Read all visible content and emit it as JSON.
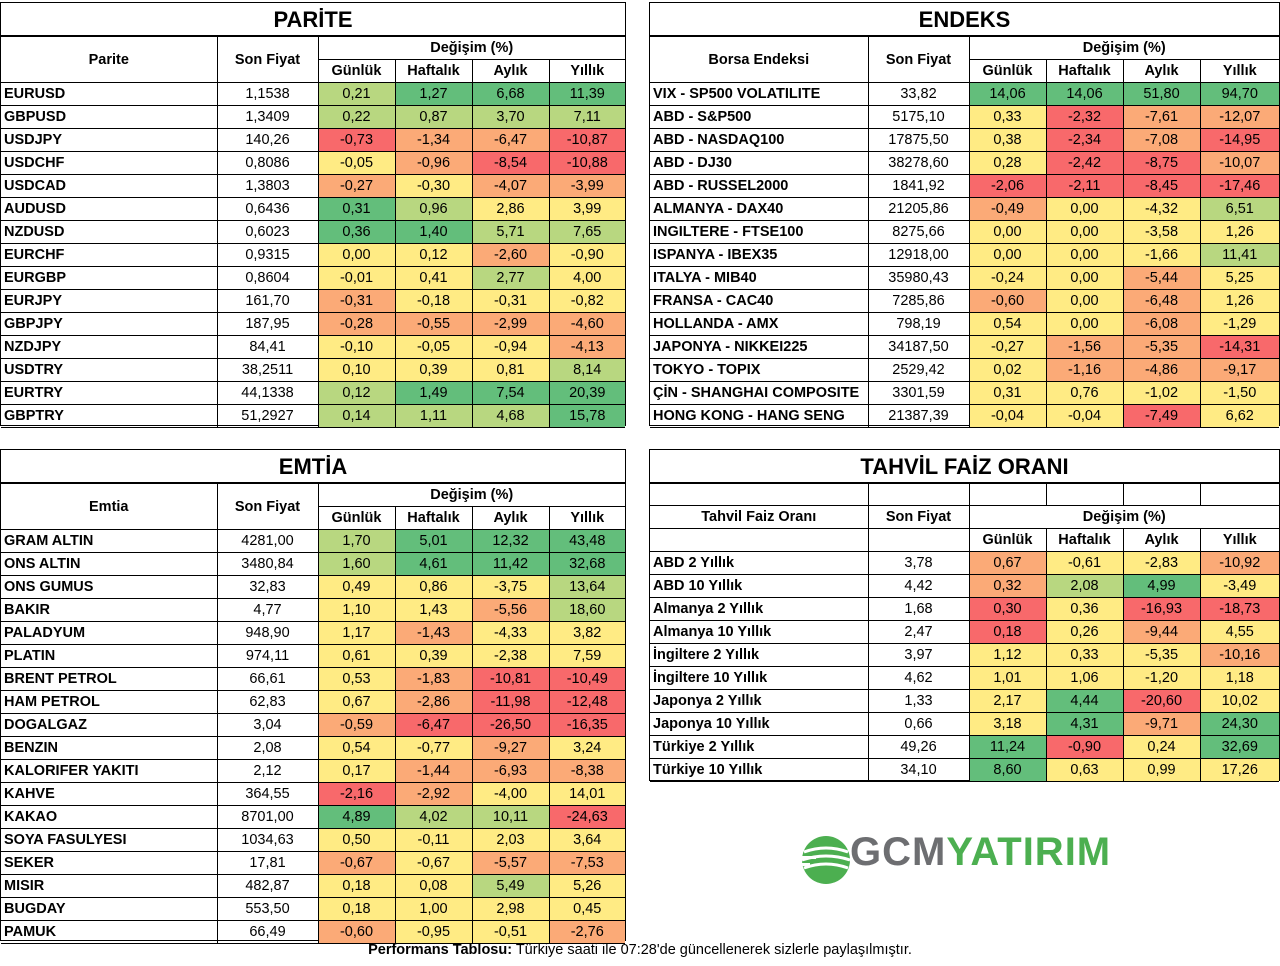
{
  "colors": {
    "red": "#f8696b",
    "orange": "#fbaa77",
    "yellow": "#ffeb84",
    "lightgreen": "#b8d780",
    "green": "#63be7b",
    "logo_green": "#4caf50",
    "logo_gray": "#6d6e71"
  },
  "parite": {
    "title": "PARİTE",
    "col_name": "Parite",
    "col_price": "Son Fiyat",
    "col_change": "Değişim (%)",
    "col_d": "Günlük",
    "col_w": "Haftalık",
    "col_m": "Aylık",
    "col_y": "Yıllık",
    "rows": [
      {
        "name": "EURUSD",
        "price": "1,1538",
        "d": "0,21",
        "w": "1,27",
        "m": "6,68",
        "y": "11,39",
        "cd": "lightgreen",
        "cw": "green",
        "cm": "green",
        "cy": "green"
      },
      {
        "name": "GBPUSD",
        "price": "1,3409",
        "d": "0,22",
        "w": "0,87",
        "m": "3,70",
        "y": "7,11",
        "cd": "lightgreen",
        "cw": "lightgreen",
        "cm": "lightgreen",
        "cy": "lightgreen"
      },
      {
        "name": "USDJPY",
        "price": "140,26",
        "d": "-0,73",
        "w": "-1,34",
        "m": "-6,47",
        "y": "-10,87",
        "cd": "red",
        "cw": "orange",
        "cm": "orange",
        "cy": "red"
      },
      {
        "name": "USDCHF",
        "price": "0,8086",
        "d": "-0,05",
        "w": "-0,96",
        "m": "-8,54",
        "y": "-10,88",
        "cd": "yellow",
        "cw": "orange",
        "cm": "red",
        "cy": "red"
      },
      {
        "name": "USDCAD",
        "price": "1,3803",
        "d": "-0,27",
        "w": "-0,30",
        "m": "-4,07",
        "y": "-3,99",
        "cd": "orange",
        "cw": "yellow",
        "cm": "orange",
        "cy": "orange"
      },
      {
        "name": "AUDUSD",
        "price": "0,6436",
        "d": "0,31",
        "w": "0,96",
        "m": "2,86",
        "y": "3,99",
        "cd": "green",
        "cw": "lightgreen",
        "cm": "yellow",
        "cy": "yellow"
      },
      {
        "name": "NZDUSD",
        "price": "0,6023",
        "d": "0,36",
        "w": "1,40",
        "m": "5,71",
        "y": "7,65",
        "cd": "green",
        "cw": "green",
        "cm": "lightgreen",
        "cy": "lightgreen"
      },
      {
        "name": "EURCHF",
        "price": "0,9315",
        "d": "0,00",
        "w": "0,12",
        "m": "-2,60",
        "y": "-0,90",
        "cd": "yellow",
        "cw": "yellow",
        "cm": "orange",
        "cy": "yellow"
      },
      {
        "name": "EURGBP",
        "price": "0,8604",
        "d": "-0,01",
        "w": "0,41",
        "m": "2,77",
        "y": "4,00",
        "cd": "yellow",
        "cw": "yellow",
        "cm": "lightgreen",
        "cy": "yellow"
      },
      {
        "name": "EURJPY",
        "price": "161,70",
        "d": "-0,31",
        "w": "-0,18",
        "m": "-0,31",
        "y": "-0,82",
        "cd": "orange",
        "cw": "yellow",
        "cm": "yellow",
        "cy": "yellow"
      },
      {
        "name": "GBPJPY",
        "price": "187,95",
        "d": "-0,28",
        "w": "-0,55",
        "m": "-2,99",
        "y": "-4,60",
        "cd": "orange",
        "cw": "orange",
        "cm": "orange",
        "cy": "orange"
      },
      {
        "name": "NZDJPY",
        "price": "84,41",
        "d": "-0,10",
        "w": "-0,05",
        "m": "-0,94",
        "y": "-4,13",
        "cd": "yellow",
        "cw": "yellow",
        "cm": "yellow",
        "cy": "orange"
      },
      {
        "name": "USDTRY",
        "price": "38,2511",
        "d": "0,10",
        "w": "0,39",
        "m": "0,81",
        "y": "8,14",
        "cd": "yellow",
        "cw": "yellow",
        "cm": "yellow",
        "cy": "lightgreen"
      },
      {
        "name": "EURTRY",
        "price": "44,1338",
        "d": "0,12",
        "w": "1,49",
        "m": "7,54",
        "y": "20,39",
        "cd": "lightgreen",
        "cw": "green",
        "cm": "green",
        "cy": "green"
      },
      {
        "name": "GBPTRY",
        "price": "51,2927",
        "d": "0,14",
        "w": "1,11",
        "m": "4,68",
        "y": "15,78",
        "cd": "lightgreen",
        "cw": "lightgreen",
        "cm": "lightgreen",
        "cy": "green"
      }
    ]
  },
  "endeks": {
    "title": "ENDEKS",
    "col_name": "Borsa Endeksi",
    "col_price": "Son Fiyat",
    "col_change": "Değişim (%)",
    "col_d": "Günlük",
    "col_w": "Haftalık",
    "col_m": "Aylık",
    "col_y": "Yıllık",
    "rows": [
      {
        "name": "VIX  - SP500 VOLATILITE",
        "price": "33,82",
        "d": "14,06",
        "w": "14,06",
        "m": "51,80",
        "y": "94,70",
        "cd": "green",
        "cw": "green",
        "cm": "green",
        "cy": "green"
      },
      {
        "name": "ABD - S&P500",
        "price": "5175,10",
        "d": "0,33",
        "w": "-2,32",
        "m": "-7,61",
        "y": "-12,07",
        "cd": "yellow",
        "cw": "red",
        "cm": "orange",
        "cy": "orange"
      },
      {
        "name": "ABD - NASDAQ100",
        "price": "17875,50",
        "d": "0,38",
        "w": "-2,34",
        "m": "-7,08",
        "y": "-14,95",
        "cd": "yellow",
        "cw": "red",
        "cm": "orange",
        "cy": "red"
      },
      {
        "name": "ABD - DJ30",
        "price": "38278,60",
        "d": "0,28",
        "w": "-2,42",
        "m": "-8,75",
        "y": "-10,07",
        "cd": "yellow",
        "cw": "red",
        "cm": "red",
        "cy": "orange"
      },
      {
        "name": "ABD - RUSSEL2000",
        "price": "1841,92",
        "d": "-2,06",
        "w": "-2,11",
        "m": "-8,45",
        "y": "-17,46",
        "cd": "red",
        "cw": "red",
        "cm": "red",
        "cy": "red"
      },
      {
        "name": "ALMANYA - DAX40",
        "price": "21205,86",
        "d": "-0,49",
        "w": "0,00",
        "m": "-4,32",
        "y": "6,51",
        "cd": "orange",
        "cw": "yellow",
        "cm": "yellow",
        "cy": "lightgreen"
      },
      {
        "name": "INGILTERE - FTSE100",
        "price": "8275,66",
        "d": "0,00",
        "w": "0,00",
        "m": "-3,58",
        "y": "1,26",
        "cd": "yellow",
        "cw": "yellow",
        "cm": "yellow",
        "cy": "yellow"
      },
      {
        "name": "ISPANYA - IBEX35",
        "price": "12918,00",
        "d": "0,00",
        "w": "0,00",
        "m": "-1,66",
        "y": "11,41",
        "cd": "yellow",
        "cw": "yellow",
        "cm": "yellow",
        "cy": "lightgreen"
      },
      {
        "name": "ITALYA - MIB40",
        "price": "35980,43",
        "d": "-0,24",
        "w": "0,00",
        "m": "-5,44",
        "y": "5,25",
        "cd": "yellow",
        "cw": "yellow",
        "cm": "orange",
        "cy": "yellow"
      },
      {
        "name": "FRANSA - CAC40",
        "price": "7285,86",
        "d": "-0,60",
        "w": "0,00",
        "m": "-6,48",
        "y": "1,26",
        "cd": "orange",
        "cw": "yellow",
        "cm": "orange",
        "cy": "yellow"
      },
      {
        "name": "HOLLANDA - AMX",
        "price": "798,19",
        "d": "0,54",
        "w": "0,00",
        "m": "-6,08",
        "y": "-1,29",
        "cd": "yellow",
        "cw": "yellow",
        "cm": "orange",
        "cy": "yellow"
      },
      {
        "name": "JAPONYA - NIKKEI225",
        "price": "34187,50",
        "d": "-0,27",
        "w": "-1,56",
        "m": "-5,35",
        "y": "-14,31",
        "cd": "yellow",
        "cw": "orange",
        "cm": "orange",
        "cy": "red"
      },
      {
        "name": "TOKYO - TOPIX",
        "price": "2529,42",
        "d": "0,02",
        "w": "-1,16",
        "m": "-4,86",
        "y": "-9,17",
        "cd": "yellow",
        "cw": "orange",
        "cm": "orange",
        "cy": "orange"
      },
      {
        "name": "ÇİN - SHANGHAI COMPOSITE",
        "price": "3301,59",
        "d": "0,31",
        "w": "0,76",
        "m": "-1,02",
        "y": "-1,50",
        "cd": "yellow",
        "cw": "yellow",
        "cm": "yellow",
        "cy": "yellow"
      },
      {
        "name": "HONG KONG - HANG SENG",
        "price": "21387,39",
        "d": "-0,04",
        "w": "-0,04",
        "m": "-7,49",
        "y": "6,62",
        "cd": "yellow",
        "cw": "yellow",
        "cm": "red",
        "cy": "yellow"
      }
    ]
  },
  "emtia": {
    "title": "EMTİA",
    "col_name": "Emtia",
    "col_price": "Son Fiyat",
    "col_change": "Değişim (%)",
    "col_d": "Günlük",
    "col_w": "Haftalık",
    "col_m": "Aylık",
    "col_y": "Yıllık",
    "rows": [
      {
        "name": "GRAM ALTIN",
        "price": "4281,00",
        "d": "1,70",
        "w": "5,01",
        "m": "12,32",
        "y": "43,48",
        "cd": "lightgreen",
        "cw": "green",
        "cm": "green",
        "cy": "green"
      },
      {
        "name": "ONS ALTIN",
        "price": "3480,84",
        "d": "1,60",
        "w": "4,61",
        "m": "11,42",
        "y": "32,68",
        "cd": "lightgreen",
        "cw": "green",
        "cm": "green",
        "cy": "green"
      },
      {
        "name": "ONS GUMUS",
        "price": "32,83",
        "d": "0,49",
        "w": "0,86",
        "m": "-3,75",
        "y": "13,64",
        "cd": "yellow",
        "cw": "yellow",
        "cm": "yellow",
        "cy": "lightgreen"
      },
      {
        "name": "BAKIR",
        "price": "4,77",
        "d": "1,10",
        "w": "1,43",
        "m": "-5,56",
        "y": "18,60",
        "cd": "yellow",
        "cw": "yellow",
        "cm": "orange",
        "cy": "lightgreen"
      },
      {
        "name": "PALADYUM",
        "price": "948,90",
        "d": "1,17",
        "w": "-1,43",
        "m": "-4,33",
        "y": "3,82",
        "cd": "yellow",
        "cw": "orange",
        "cm": "yellow",
        "cy": "yellow"
      },
      {
        "name": "PLATIN",
        "price": "974,11",
        "d": "0,61",
        "w": "0,39",
        "m": "-2,38",
        "y": "7,59",
        "cd": "yellow",
        "cw": "yellow",
        "cm": "yellow",
        "cy": "yellow"
      },
      {
        "name": "BRENT PETROL",
        "price": "66,61",
        "d": "0,53",
        "w": "-1,83",
        "m": "-10,81",
        "y": "-10,49",
        "cd": "yellow",
        "cw": "orange",
        "cm": "red",
        "cy": "red"
      },
      {
        "name": "HAM PETROL",
        "price": "62,83",
        "d": "0,67",
        "w": "-2,86",
        "m": "-11,98",
        "y": "-12,48",
        "cd": "yellow",
        "cw": "orange",
        "cm": "red",
        "cy": "red"
      },
      {
        "name": "DOGALGAZ",
        "price": "3,04",
        "d": "-0,59",
        "w": "-6,47",
        "m": "-26,50",
        "y": "-16,35",
        "cd": "orange",
        "cw": "red",
        "cm": "red",
        "cy": "red"
      },
      {
        "name": "BENZIN",
        "price": "2,08",
        "d": "0,54",
        "w": "-0,77",
        "m": "-9,27",
        "y": "3,24",
        "cd": "yellow",
        "cw": "yellow",
        "cm": "orange",
        "cy": "yellow"
      },
      {
        "name": "KALORIFER YAKITI",
        "price": "2,12",
        "d": "0,17",
        "w": "-1,44",
        "m": "-6,93",
        "y": "-8,38",
        "cd": "yellow",
        "cw": "orange",
        "cm": "orange",
        "cy": "orange"
      },
      {
        "name": "KAHVE",
        "price": "364,55",
        "d": "-2,16",
        "w": "-2,92",
        "m": "-4,00",
        "y": "14,01",
        "cd": "red",
        "cw": "orange",
        "cm": "yellow",
        "cy": "yellow"
      },
      {
        "name": "KAKAO",
        "price": "8701,00",
        "d": "4,89",
        "w": "4,02",
        "m": "10,11",
        "y": "-24,63",
        "cd": "green",
        "cw": "lightgreen",
        "cm": "lightgreen",
        "cy": "red"
      },
      {
        "name": "SOYA FASULYESI",
        "price": "1034,63",
        "d": "0,50",
        "w": "-0,11",
        "m": "2,03",
        "y": "3,64",
        "cd": "yellow",
        "cw": "yellow",
        "cm": "yellow",
        "cy": "yellow"
      },
      {
        "name": "SEKER",
        "price": "17,81",
        "d": "-0,67",
        "w": "-0,67",
        "m": "-5,57",
        "y": "-7,53",
        "cd": "orange",
        "cw": "yellow",
        "cm": "orange",
        "cy": "orange"
      },
      {
        "name": "MISIR",
        "price": "482,87",
        "d": "0,18",
        "w": "0,08",
        "m": "5,49",
        "y": "5,26",
        "cd": "yellow",
        "cw": "yellow",
        "cm": "lightgreen",
        "cy": "yellow"
      },
      {
        "name": "BUGDAY",
        "price": "553,50",
        "d": "0,18",
        "w": "1,00",
        "m": "2,98",
        "y": "0,45",
        "cd": "yellow",
        "cw": "yellow",
        "cm": "yellow",
        "cy": "yellow"
      },
      {
        "name": "PAMUK",
        "price": "66,49",
        "d": "-0,60",
        "w": "-0,95",
        "m": "-0,51",
        "y": "-2,76",
        "cd": "orange",
        "cw": "yellow",
        "cm": "yellow",
        "cy": "orange"
      }
    ]
  },
  "tahvil": {
    "title": "TAHVİL FAİZ ORANI",
    "col_name": "Tahvil Faiz Oranı",
    "col_price": "Son Fiyat",
    "col_change": "Değişim (%)",
    "col_d": "Günlük",
    "col_w": "Haftalık",
    "col_m": "Aylık",
    "col_y": "Yıllık",
    "rows": [
      {
        "name": "ABD 2 Yıllık",
        "price": "3,78",
        "d": "0,67",
        "w": "-0,61",
        "m": "-2,83",
        "y": "-10,92",
        "cd": "orange",
        "cw": "yellow",
        "cm": "yellow",
        "cy": "orange"
      },
      {
        "name": "ABD 10 Yıllık",
        "price": "4,42",
        "d": "0,32",
        "w": "2,08",
        "m": "4,99",
        "y": "-3,49",
        "cd": "orange",
        "cw": "lightgreen",
        "cm": "green",
        "cy": "yellow"
      },
      {
        "name": "Almanya 2 Yıllık",
        "price": "1,68",
        "d": "0,30",
        "w": "0,36",
        "m": "-16,93",
        "y": "-18,73",
        "cd": "red",
        "cw": "yellow",
        "cm": "red",
        "cy": "red"
      },
      {
        "name": "Almanya 10 Yıllık",
        "price": "2,47",
        "d": "0,18",
        "w": "0,26",
        "m": "-9,44",
        "y": "4,55",
        "cd": "red",
        "cw": "yellow",
        "cm": "orange",
        "cy": "yellow"
      },
      {
        "name": "İngiltere 2 Yıllık",
        "price": "3,97",
        "d": "1,12",
        "w": "0,33",
        "m": "-5,35",
        "y": "-10,16",
        "cd": "yellow",
        "cw": "yellow",
        "cm": "yellow",
        "cy": "orange"
      },
      {
        "name": "İngiltere 10 Yıllık",
        "price": "4,62",
        "d": "1,01",
        "w": "1,06",
        "m": "-1,20",
        "y": "1,18",
        "cd": "yellow",
        "cw": "yellow",
        "cm": "yellow",
        "cy": "yellow"
      },
      {
        "name": "Japonya 2 Yıllık",
        "price": "1,33",
        "d": "2,17",
        "w": "4,44",
        "m": "-20,60",
        "y": "10,02",
        "cd": "yellow",
        "cw": "green",
        "cm": "red",
        "cy": "yellow"
      },
      {
        "name": "Japonya 10 Yıllık",
        "price": "0,66",
        "d": "3,18",
        "w": "4,31",
        "m": "-9,71",
        "y": "24,30",
        "cd": "yellow",
        "cw": "green",
        "cm": "orange",
        "cy": "green"
      },
      {
        "name": "Türkiye 2 Yıllık",
        "price": "49,26",
        "d": "11,24",
        "w": "-0,90",
        "m": "0,24",
        "y": "32,69",
        "cd": "green",
        "cw": "red",
        "cm": "yellow",
        "cy": "green"
      },
      {
        "name": "Türkiye 10 Yıllık",
        "price": "34,10",
        "d": "8,60",
        "w": "0,63",
        "m": "0,99",
        "y": "17,26",
        "cd": "green",
        "cw": "yellow",
        "cm": "yellow",
        "cy": "yellow"
      }
    ]
  },
  "logo": {
    "brand_a": "GCM",
    "brand_b": "YATIRIM"
  },
  "footer": {
    "bold": "Performans Tablosu:",
    "text": " Türkiye saati ile 07:28'de güncellenerek sizlerle paylaşılmıştır."
  }
}
